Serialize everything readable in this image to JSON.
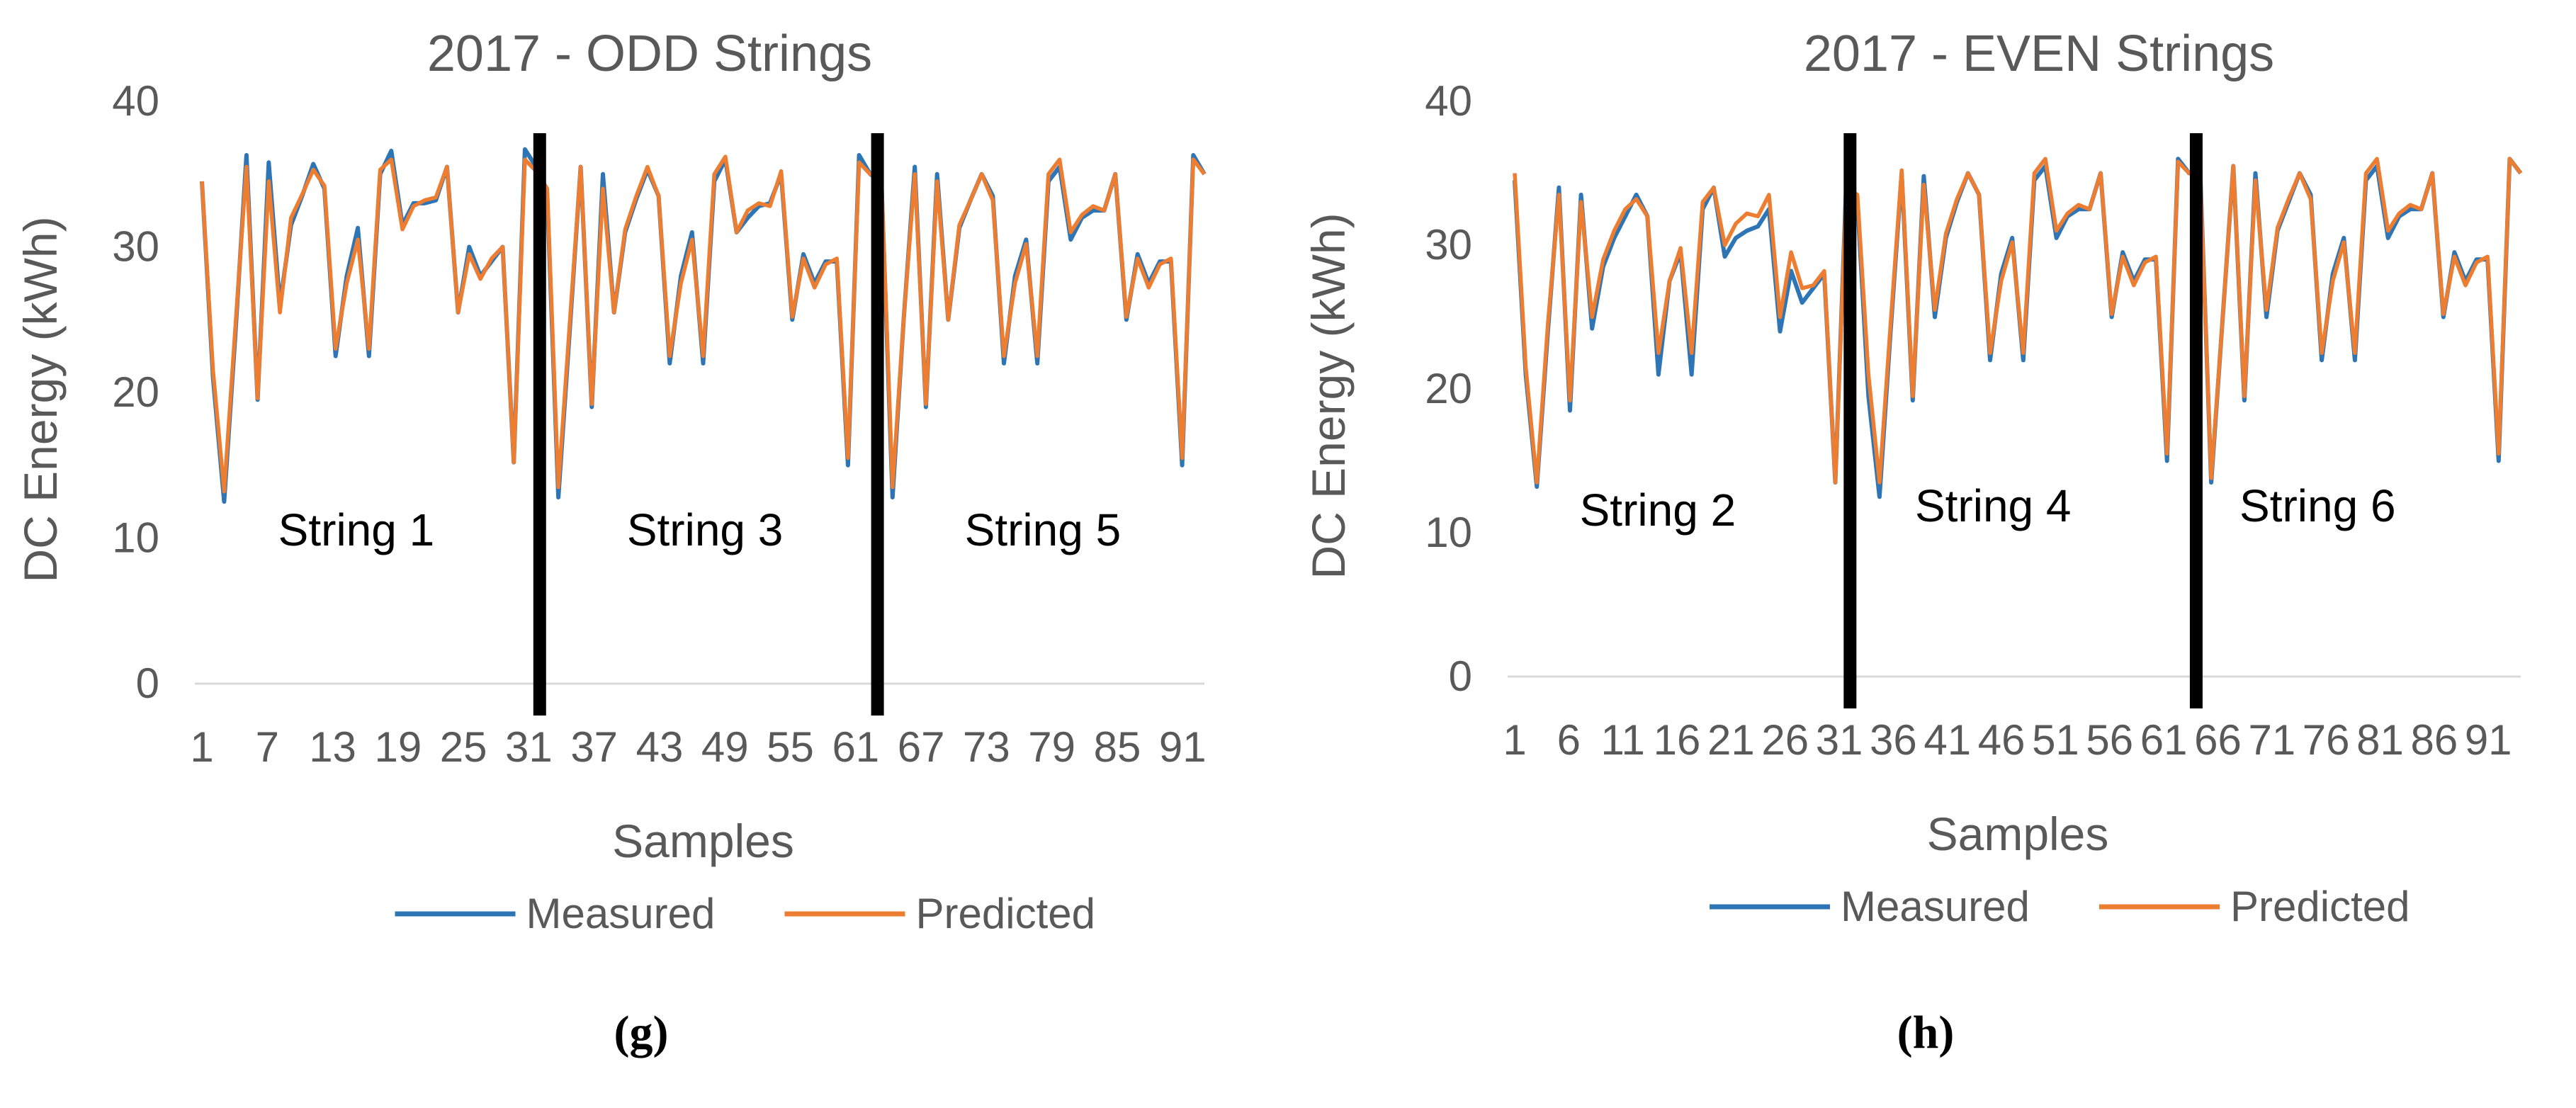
{
  "colors": {
    "measured": "#2E75B6",
    "predicted": "#ED7D31",
    "grid": "#D9D9D9",
    "text": "#595959"
  },
  "chart_data": [
    {
      "type": "line",
      "title": "2017 - ODD Strings",
      "xlabel": "Samples",
      "ylabel": "DC Energy (kWh)",
      "ylim": [
        0,
        40
      ],
      "yticks": [
        "0",
        "10",
        "20",
        "30",
        "40"
      ],
      "xticks": [
        {
          "x": 1,
          "label": "1"
        },
        {
          "x": 7,
          "label": "7"
        },
        {
          "x": 13,
          "label": "13"
        },
        {
          "x": 19,
          "label": "19"
        },
        {
          "x": 25,
          "label": "25"
        },
        {
          "x": 31,
          "label": "31"
        },
        {
          "x": 37,
          "label": "37"
        },
        {
          "x": 43,
          "label": "43"
        },
        {
          "x": 49,
          "label": "49"
        },
        {
          "x": 55,
          "label": "55"
        },
        {
          "x": 61,
          "label": "61"
        },
        {
          "x": 67,
          "label": "67"
        },
        {
          "x": 73,
          "label": "73"
        },
        {
          "x": 79,
          "label": "79"
        },
        {
          "x": 85,
          "label": "85"
        },
        {
          "x": 91,
          "label": "91"
        }
      ],
      "xlim": [
        1,
        93
      ],
      "legend": "bottom",
      "dividers": [
        32,
        63
      ],
      "annotations": [
        {
          "text": "String 1",
          "x": 8,
          "y": 9.5
        },
        {
          "text": "String 3",
          "x": 40,
          "y": 9.5
        },
        {
          "text": "String 5",
          "x": 71,
          "y": 9.5
        }
      ],
      "series": [
        {
          "name": "Measured",
          "values": [
            34.5,
            21,
            12.5,
            24,
            36.3,
            19.5,
            35.8,
            26,
            31.5,
            33.5,
            35.7,
            34,
            22.5,
            28,
            31.3,
            22.5,
            35,
            36.6,
            31.5,
            33,
            33,
            33.2,
            35.5,
            25.5,
            30,
            28,
            29,
            30,
            15.2,
            36.7,
            35.5,
            33.5,
            12.8,
            24,
            35.5,
            19,
            35,
            25.5,
            31,
            33.3,
            35.3,
            33.5,
            22,
            28,
            31,
            22,
            34.5,
            36,
            31,
            32,
            32.8,
            33,
            35,
            25,
            29.5,
            27.5,
            29,
            29,
            15,
            36.3,
            35,
            34.5,
            12.8,
            25,
            35.5,
            19,
            35,
            25,
            31.3,
            33.2,
            35,
            33.5,
            22,
            28,
            30.5,
            22,
            34.5,
            35.5,
            30.5,
            32,
            32.5,
            32.5,
            35,
            25,
            29.5,
            27.5,
            29,
            29,
            15,
            36.3,
            35
          ]
        },
        {
          "name": "Predicted",
          "values": [
            34.5,
            21.5,
            13.2,
            24.5,
            35.5,
            19.6,
            34.5,
            25.5,
            32,
            33.6,
            35.3,
            34.2,
            23,
            27.5,
            30.5,
            23,
            35.3,
            36,
            31.2,
            32.8,
            33.2,
            33.4,
            35.5,
            25.5,
            29.5,
            27.8,
            29.2,
            30,
            15.2,
            36,
            35.2,
            34,
            13.5,
            24.5,
            35.5,
            19.2,
            34,
            25.5,
            31.2,
            33.5,
            35.5,
            33.5,
            22.5,
            27.5,
            30.5,
            22.5,
            35,
            36.2,
            31,
            32.5,
            33,
            32.8,
            35.2,
            25.2,
            29.2,
            27.2,
            28.8,
            29.2,
            15.5,
            35.8,
            35,
            34.8,
            13.5,
            25,
            35,
            19.2,
            34.5,
            25,
            31.5,
            33.2,
            35,
            33.2,
            22.5,
            27.5,
            30.2,
            22.5,
            35,
            36,
            31,
            32.2,
            32.8,
            32.5,
            35,
            25.2,
            29.2,
            27.2,
            28.8,
            29.2,
            15.5,
            36,
            35
          ]
        }
      ]
    },
    {
      "type": "line",
      "title": "2017 - EVEN Strings",
      "xlabel": "Samples",
      "ylabel": "DC Energy (kWh)",
      "ylim": [
        0,
        40
      ],
      "yticks": [
        "0",
        "10",
        "20",
        "30",
        "40"
      ],
      "xticks": [
        {
          "x": 1,
          "label": "1"
        },
        {
          "x": 6,
          "label": "6"
        },
        {
          "x": 11,
          "label": "11"
        },
        {
          "x": 16,
          "label": "16"
        },
        {
          "x": 21,
          "label": "21"
        },
        {
          "x": 26,
          "label": "26"
        },
        {
          "x": 31,
          "label": "31"
        },
        {
          "x": 36,
          "label": "36"
        },
        {
          "x": 41,
          "label": "41"
        },
        {
          "x": 46,
          "label": "46"
        },
        {
          "x": 51,
          "label": "51"
        },
        {
          "x": 56,
          "label": "56"
        },
        {
          "x": 61,
          "label": "61"
        },
        {
          "x": 66,
          "label": "66"
        },
        {
          "x": 71,
          "label": "71"
        },
        {
          "x": 76,
          "label": "76"
        },
        {
          "x": 81,
          "label": "81"
        },
        {
          "x": 86,
          "label": "86"
        },
        {
          "x": 91,
          "label": "91"
        }
      ],
      "xlim": [
        1,
        94
      ],
      "legend": "bottom",
      "dividers": [
        32,
        64
      ],
      "annotations": [
        {
          "text": "String 2",
          "x": 7,
          "y": 10.5
        },
        {
          "text": "String 4",
          "x": 38,
          "y": 10.8
        },
        {
          "text": "String 6",
          "x": 68,
          "y": 10.8
        }
      ],
      "series": [
        {
          "name": "Measured",
          "values": [
            34.5,
            21,
            13.2,
            24,
            34,
            18.5,
            33.5,
            24.2,
            28.5,
            30.5,
            32,
            33.5,
            32,
            21,
            27.5,
            29.5,
            21,
            32.5,
            34,
            29.2,
            30.5,
            31,
            31.3,
            32.5,
            24,
            28.2,
            26,
            27,
            28,
            13.5,
            34.5,
            33,
            19.5,
            12.5,
            24,
            35,
            19.2,
            34.8,
            25,
            30.5,
            33,
            35,
            33.5,
            22,
            28,
            30.5,
            22,
            34.5,
            35.5,
            30.5,
            32,
            32.5,
            32.5,
            35,
            25,
            29.5,
            27.5,
            29,
            29,
            15,
            36,
            35,
            35.2,
            13.5,
            24.5,
            35.5,
            19.2,
            35,
            25,
            31,
            33,
            35,
            33.5,
            22,
            28,
            30.5,
            22,
            34.5,
            35.5,
            30.5,
            32,
            32.5,
            32.5,
            35,
            25,
            29.5,
            27.5,
            29,
            29,
            15,
            36,
            35
          ]
        },
        {
          "name": "Predicted",
          "values": [
            35,
            21.5,
            13.5,
            24.5,
            33.5,
            19.2,
            33,
            25,
            29,
            31,
            32.5,
            33.2,
            32,
            22.5,
            27.5,
            29.8,
            22.5,
            33,
            34,
            30,
            31.5,
            32.2,
            32,
            33.5,
            25,
            29.5,
            27,
            27.2,
            28.2,
            13.5,
            34,
            33.5,
            21,
            13.5,
            24.5,
            35.2,
            19.5,
            34.2,
            25.5,
            30.8,
            33.2,
            35,
            33.5,
            22.5,
            27.5,
            30.2,
            22.5,
            35,
            36,
            31,
            32.2,
            32.8,
            32.5,
            35,
            25.2,
            29.2,
            27.2,
            28.8,
            29.2,
            15.5,
            35.8,
            35,
            35,
            13.8,
            24.5,
            35.5,
            19.5,
            34.5,
            25.5,
            31.2,
            33.2,
            35,
            33.2,
            22.5,
            27.5,
            30.2,
            22.5,
            35,
            36,
            31,
            32.2,
            32.8,
            32.5,
            35,
            25.2,
            29.2,
            27.2,
            28.8,
            29.2,
            15.5,
            36,
            35
          ]
        }
      ]
    }
  ],
  "captions": [
    "(g)",
    "(h)"
  ]
}
